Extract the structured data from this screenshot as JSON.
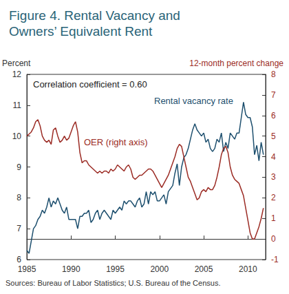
{
  "chart_data": {
    "type": "line",
    "title": "Figure 4. Rental Vacancy and Owners’ Equivalent Rent",
    "y_label": "Percent",
    "y2_label": "12-month percent change",
    "annotations": [
      {
        "text": "Correlation coefficient = 0.60",
        "color": "#222222"
      },
      {
        "text": "Rental vacancy rate",
        "color": "#1d4f6e"
      },
      {
        "text": "OER (right axis)",
        "color": "#9b2b24"
      }
    ],
    "source": "Sources: Bureau of Labor Statistics; U.S. Bureau of the Census.",
    "grid": false,
    "xlim": [
      1985,
      2012
    ],
    "xticks": [
      1985,
      1990,
      1995,
      2000,
      2005,
      2010
    ],
    "ylim": [
      6,
      12
    ],
    "yticks": [
      6,
      7,
      8,
      9,
      10,
      11,
      12
    ],
    "y2lim": [
      -1,
      8
    ],
    "y2ticks": [
      -1,
      0,
      1,
      2,
      3,
      4,
      5,
      6,
      7,
      8
    ],
    "x": [
      1985,
      1985.25,
      1985.5,
      1985.75,
      1986,
      1986.25,
      1986.5,
      1986.75,
      1987,
      1987.25,
      1987.5,
      1987.75,
      1988,
      1988.25,
      1988.5,
      1988.75,
      1989,
      1989.25,
      1989.5,
      1989.75,
      1990,
      1990.25,
      1990.5,
      1990.75,
      1991,
      1991.25,
      1991.5,
      1991.75,
      1992,
      1992.25,
      1992.5,
      1992.75,
      1993,
      1993.25,
      1993.5,
      1993.75,
      1994,
      1994.25,
      1994.5,
      1994.75,
      1995,
      1995.25,
      1995.5,
      1995.75,
      1996,
      1996.25,
      1996.5,
      1996.75,
      1997,
      1997.25,
      1997.5,
      1997.75,
      1998,
      1998.25,
      1998.5,
      1998.75,
      1999,
      1999.25,
      1999.5,
      1999.75,
      2000,
      2000.25,
      2000.5,
      2000.75,
      2001,
      2001.25,
      2001.5,
      2001.75,
      2002,
      2002.25,
      2002.5,
      2002.75,
      2003,
      2003.25,
      2003.5,
      2003.75,
      2004,
      2004.25,
      2004.5,
      2004.75,
      2005,
      2005.25,
      2005.5,
      2005.75,
      2006,
      2006.25,
      2006.5,
      2006.75,
      2007,
      2007.25,
      2007.5,
      2007.75,
      2008,
      2008.25,
      2008.5,
      2008.75,
      2009,
      2009.25,
      2009.5,
      2009.75,
      2010,
      2010.25,
      2010.5,
      2010.75,
      2011,
      2011.25,
      2011.5,
      2011.75
    ],
    "series": [
      {
        "name": "Rental vacancy rate",
        "color": "#1d4f6e",
        "line_style": "solid",
        "values": [
          6.3,
          6.2,
          6.6,
          7.0,
          7.1,
          7.3,
          7.4,
          7.6,
          7.5,
          7.7,
          8.0,
          7.7,
          7.9,
          7.8,
          8.0,
          7.8,
          7.6,
          7.5,
          7.7,
          7.3,
          7.3,
          7.3,
          7.3,
          7.0,
          7.4,
          7.4,
          7.5,
          7.5,
          7.6,
          7.2,
          7.3,
          7.5,
          7.6,
          7.3,
          7.5,
          7.6,
          7.5,
          7.4,
          7.3,
          7.6,
          7.5,
          7.6,
          7.7,
          7.6,
          7.9,
          7.8,
          7.9,
          7.9,
          7.8,
          7.7,
          7.9,
          8.0,
          7.7,
          7.8,
          8.2,
          7.8,
          8.2,
          8.1,
          8.2,
          7.9,
          7.9,
          8.0,
          8.1,
          7.8,
          8.2,
          8.3,
          8.4,
          8.8,
          9.1,
          8.4,
          9.0,
          9.3,
          9.4,
          9.6,
          9.9,
          10.2,
          10.4,
          10.2,
          10.1,
          10.0,
          10.1,
          9.8,
          9.9,
          9.6,
          9.5,
          9.6,
          9.9,
          9.8,
          10.1,
          9.5,
          9.8,
          9.6,
          10.1,
          10.0,
          9.9,
          10.1,
          10.1,
          10.6,
          11.1,
          10.7,
          10.6,
          10.6,
          10.3,
          9.4,
          9.7,
          9.2,
          9.8,
          9.4
        ]
      },
      {
        "name": "OER (right axis)",
        "color": "#9b2b24",
        "axis": "y2",
        "line_style": "solid",
        "values": [
          5.0,
          5.1,
          5.2,
          5.4,
          5.7,
          5.8,
          5.5,
          5.0,
          4.8,
          4.7,
          4.8,
          4.6,
          5.3,
          5.4,
          5.0,
          4.7,
          4.8,
          5.0,
          4.8,
          4.9,
          5.2,
          5.5,
          5.7,
          5.2,
          4.2,
          3.7,
          3.8,
          3.8,
          3.6,
          3.5,
          3.4,
          3.3,
          3.2,
          3.3,
          3.2,
          3.3,
          3.3,
          3.2,
          3.4,
          3.3,
          3.4,
          3.6,
          3.5,
          3.4,
          3.3,
          3.5,
          3.6,
          3.4,
          3.0,
          2.9,
          3.0,
          3.1,
          3.1,
          3.2,
          3.3,
          3.4,
          3.4,
          3.3,
          3.1,
          2.9,
          2.7,
          2.5,
          2.7,
          2.9,
          3.1,
          3.4,
          3.7,
          4.0,
          4.4,
          4.6,
          4.5,
          4.0,
          3.5,
          3.0,
          2.8,
          2.5,
          2.2,
          1.9,
          2.0,
          2.3,
          2.4,
          2.3,
          2.5,
          2.4,
          2.4,
          2.6,
          3.0,
          3.5,
          4.1,
          4.4,
          4.5,
          4.2,
          3.5,
          3.1,
          2.9,
          2.8,
          2.7,
          2.4,
          2.1,
          1.5,
          0.9,
          0.3,
          0.0,
          0.0,
          0.3,
          0.6,
          1.0,
          1.5
        ]
      }
    ]
  }
}
